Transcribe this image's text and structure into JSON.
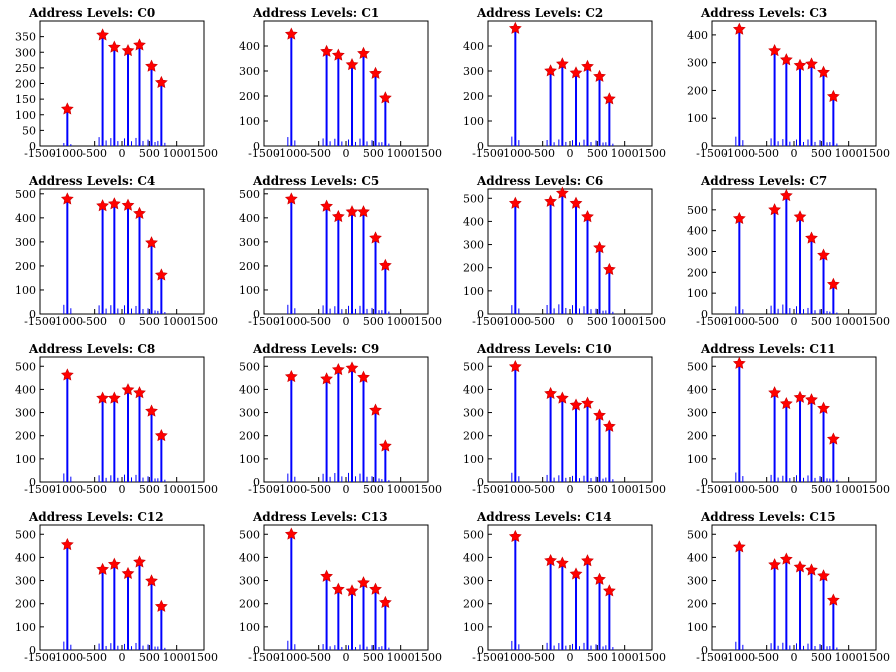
{
  "figure": {
    "xticks": [
      -1500,
      -1000,
      -500,
      0,
      500,
      1000,
      1500
    ],
    "xtick_labels": [
      "-1500",
      "-1000",
      "-500",
      "0",
      "500",
      "1000",
      "1500"
    ],
    "colors": {
      "bars": "#0000ff",
      "markers": "#ff0000",
      "axes": "#000000",
      "background": "#ffffff"
    },
    "marker_shape": "star"
  },
  "chart_data": [
    {
      "type": "bar",
      "title": "Address Levels: C0",
      "xlim": [
        -1500,
        1500
      ],
      "ylim": [
        0,
        400
      ],
      "yticks": [
        0,
        50,
        100,
        150,
        200,
        250,
        300,
        350
      ],
      "peaks": [
        {
          "x": -1000,
          "y": 118
        },
        {
          "x": -355,
          "y": 355
        },
        {
          "x": -140,
          "y": 316
        },
        {
          "x": 110,
          "y": 305
        },
        {
          "x": 320,
          "y": 323
        },
        {
          "x": 540,
          "y": 255
        },
        {
          "x": 720,
          "y": 203
        }
      ]
    },
    {
      "type": "bar",
      "title": "Address Levels: C1",
      "xlim": [
        -1500,
        1500
      ],
      "ylim": [
        0,
        500
      ],
      "yticks": [
        0,
        100,
        200,
        300,
        400
      ],
      "peaks": [
        {
          "x": -1000,
          "y": 447
        },
        {
          "x": -355,
          "y": 378
        },
        {
          "x": -140,
          "y": 363
        },
        {
          "x": 110,
          "y": 325
        },
        {
          "x": 320,
          "y": 370
        },
        {
          "x": 540,
          "y": 290
        },
        {
          "x": 720,
          "y": 192
        }
      ]
    },
    {
      "type": "bar",
      "title": "Address Levels: C2",
      "xlim": [
        -1500,
        1500
      ],
      "ylim": [
        0,
        500
      ],
      "yticks": [
        0,
        100,
        200,
        300,
        400
      ],
      "peaks": [
        {
          "x": -1000,
          "y": 470
        },
        {
          "x": -355,
          "y": 300
        },
        {
          "x": -140,
          "y": 328
        },
        {
          "x": 110,
          "y": 292
        },
        {
          "x": 320,
          "y": 318
        },
        {
          "x": 540,
          "y": 278
        },
        {
          "x": 720,
          "y": 188
        }
      ]
    },
    {
      "type": "bar",
      "title": "Address Levels: C3",
      "xlim": [
        -1500,
        1500
      ],
      "ylim": [
        0,
        450
      ],
      "yticks": [
        0,
        100,
        200,
        300,
        400
      ],
      "peaks": [
        {
          "x": -1000,
          "y": 420
        },
        {
          "x": -355,
          "y": 343
        },
        {
          "x": -140,
          "y": 310
        },
        {
          "x": 110,
          "y": 290
        },
        {
          "x": 320,
          "y": 295
        },
        {
          "x": 540,
          "y": 265
        },
        {
          "x": 720,
          "y": 178
        }
      ]
    },
    {
      "type": "bar",
      "title": "Address Levels: C4",
      "xlim": [
        -1500,
        1500
      ],
      "ylim": [
        0,
        520
      ],
      "yticks": [
        0,
        100,
        200,
        300,
        400,
        500
      ],
      "peaks": [
        {
          "x": -1000,
          "y": 478
        },
        {
          "x": -355,
          "y": 450
        },
        {
          "x": -140,
          "y": 458
        },
        {
          "x": 110,
          "y": 452
        },
        {
          "x": 320,
          "y": 418
        },
        {
          "x": 540,
          "y": 296
        },
        {
          "x": 720,
          "y": 162
        }
      ]
    },
    {
      "type": "bar",
      "title": "Address Levels: C5",
      "xlim": [
        -1500,
        1500
      ],
      "ylim": [
        0,
        520
      ],
      "yticks": [
        0,
        100,
        200,
        300,
        400,
        500
      ],
      "peaks": [
        {
          "x": -1000,
          "y": 478
        },
        {
          "x": -355,
          "y": 448
        },
        {
          "x": -140,
          "y": 405
        },
        {
          "x": 110,
          "y": 425
        },
        {
          "x": 320,
          "y": 425
        },
        {
          "x": 540,
          "y": 316
        },
        {
          "x": 720,
          "y": 202
        }
      ]
    },
    {
      "type": "bar",
      "title": "Address Levels: C6",
      "xlim": [
        -1500,
        1500
      ],
      "ylim": [
        0,
        540
      ],
      "yticks": [
        0,
        100,
        200,
        300,
        400,
        500
      ],
      "peaks": [
        {
          "x": -1000,
          "y": 478
        },
        {
          "x": -355,
          "y": 486
        },
        {
          "x": -140,
          "y": 522
        },
        {
          "x": 110,
          "y": 478
        },
        {
          "x": 320,
          "y": 420
        },
        {
          "x": 540,
          "y": 286
        },
        {
          "x": 720,
          "y": 192
        }
      ]
    },
    {
      "type": "bar",
      "title": "Address Levels: C7",
      "xlim": [
        -1500,
        1500
      ],
      "ylim": [
        0,
        600
      ],
      "yticks": [
        0,
        100,
        200,
        300,
        400,
        500
      ],
      "peaks": [
        {
          "x": -1000,
          "y": 458
        },
        {
          "x": -355,
          "y": 500
        },
        {
          "x": -140,
          "y": 568
        },
        {
          "x": 110,
          "y": 466
        },
        {
          "x": 320,
          "y": 364
        },
        {
          "x": 540,
          "y": 282
        },
        {
          "x": 720,
          "y": 142
        }
      ]
    },
    {
      "type": "bar",
      "title": "Address Levels: C8",
      "xlim": [
        -1500,
        1500
      ],
      "ylim": [
        0,
        540
      ],
      "yticks": [
        0,
        100,
        200,
        300,
        400,
        500
      ],
      "peaks": [
        {
          "x": -1000,
          "y": 462
        },
        {
          "x": -355,
          "y": 362
        },
        {
          "x": -140,
          "y": 362
        },
        {
          "x": 110,
          "y": 398
        },
        {
          "x": 320,
          "y": 385
        },
        {
          "x": 540,
          "y": 306
        },
        {
          "x": 720,
          "y": 200
        }
      ]
    },
    {
      "type": "bar",
      "title": "Address Levels: C9",
      "xlim": [
        -1500,
        1500
      ],
      "ylim": [
        0,
        540
      ],
      "yticks": [
        0,
        100,
        200,
        300,
        400,
        500
      ],
      "peaks": [
        {
          "x": -1000,
          "y": 455
        },
        {
          "x": -355,
          "y": 445
        },
        {
          "x": -140,
          "y": 485
        },
        {
          "x": 110,
          "y": 492
        },
        {
          "x": 320,
          "y": 452
        },
        {
          "x": 540,
          "y": 310
        },
        {
          "x": 720,
          "y": 155
        }
      ]
    },
    {
      "type": "bar",
      "title": "Address Levels: C10",
      "xlim": [
        -1500,
        1500
      ],
      "ylim": [
        0,
        540
      ],
      "yticks": [
        0,
        100,
        200,
        300,
        400,
        500
      ],
      "peaks": [
        {
          "x": -1000,
          "y": 498
        },
        {
          "x": -355,
          "y": 382
        },
        {
          "x": -140,
          "y": 362
        },
        {
          "x": 110,
          "y": 332
        },
        {
          "x": 320,
          "y": 340
        },
        {
          "x": 540,
          "y": 288
        },
        {
          "x": 720,
          "y": 240
        }
      ]
    },
    {
      "type": "bar",
      "title": "Address Levels: C11",
      "xlim": [
        -1500,
        1500
      ],
      "ylim": [
        0,
        540
      ],
      "yticks": [
        0,
        100,
        200,
        300,
        400,
        500
      ],
      "peaks": [
        {
          "x": -1000,
          "y": 512
        },
        {
          "x": -355,
          "y": 385
        },
        {
          "x": -140,
          "y": 338
        },
        {
          "x": 110,
          "y": 365
        },
        {
          "x": 320,
          "y": 355
        },
        {
          "x": 540,
          "y": 318
        },
        {
          "x": 720,
          "y": 185
        }
      ]
    },
    {
      "type": "bar",
      "title": "Address Levels: C12",
      "xlim": [
        -1500,
        1500
      ],
      "ylim": [
        0,
        540
      ],
      "yticks": [
        0,
        100,
        200,
        300,
        400,
        500
      ],
      "peaks": [
        {
          "x": -1000,
          "y": 455
        },
        {
          "x": -355,
          "y": 348
        },
        {
          "x": -140,
          "y": 370
        },
        {
          "x": 110,
          "y": 330
        },
        {
          "x": 320,
          "y": 380
        },
        {
          "x": 540,
          "y": 298
        },
        {
          "x": 720,
          "y": 188
        }
      ]
    },
    {
      "type": "bar",
      "title": "Address Levels: C13",
      "xlim": [
        -1500,
        1500
      ],
      "ylim": [
        0,
        540
      ],
      "yticks": [
        0,
        100,
        200,
        300,
        400,
        500
      ],
      "peaks": [
        {
          "x": -1000,
          "y": 500
        },
        {
          "x": -355,
          "y": 318
        },
        {
          "x": -140,
          "y": 262
        },
        {
          "x": 110,
          "y": 255
        },
        {
          "x": 320,
          "y": 290
        },
        {
          "x": 540,
          "y": 262
        },
        {
          "x": 720,
          "y": 205
        }
      ]
    },
    {
      "type": "bar",
      "title": "Address Levels: C14",
      "xlim": [
        -1500,
        1500
      ],
      "ylim": [
        0,
        540
      ],
      "yticks": [
        0,
        100,
        200,
        300,
        400,
        500
      ],
      "peaks": [
        {
          "x": -1000,
          "y": 490
        },
        {
          "x": -355,
          "y": 386
        },
        {
          "x": -140,
          "y": 375
        },
        {
          "x": 110,
          "y": 328
        },
        {
          "x": 320,
          "y": 385
        },
        {
          "x": 540,
          "y": 305
        },
        {
          "x": 720,
          "y": 255
        }
      ]
    },
    {
      "type": "bar",
      "title": "Address Levels: C15",
      "xlim": [
        -1500,
        1500
      ],
      "ylim": [
        0,
        540
      ],
      "yticks": [
        0,
        100,
        200,
        300,
        400,
        500
      ],
      "peaks": [
        {
          "x": -1000,
          "y": 445
        },
        {
          "x": -355,
          "y": 368
        },
        {
          "x": -140,
          "y": 392
        },
        {
          "x": 110,
          "y": 358
        },
        {
          "x": 320,
          "y": 345
        },
        {
          "x": 540,
          "y": 320
        },
        {
          "x": 720,
          "y": 215
        }
      ]
    }
  ]
}
